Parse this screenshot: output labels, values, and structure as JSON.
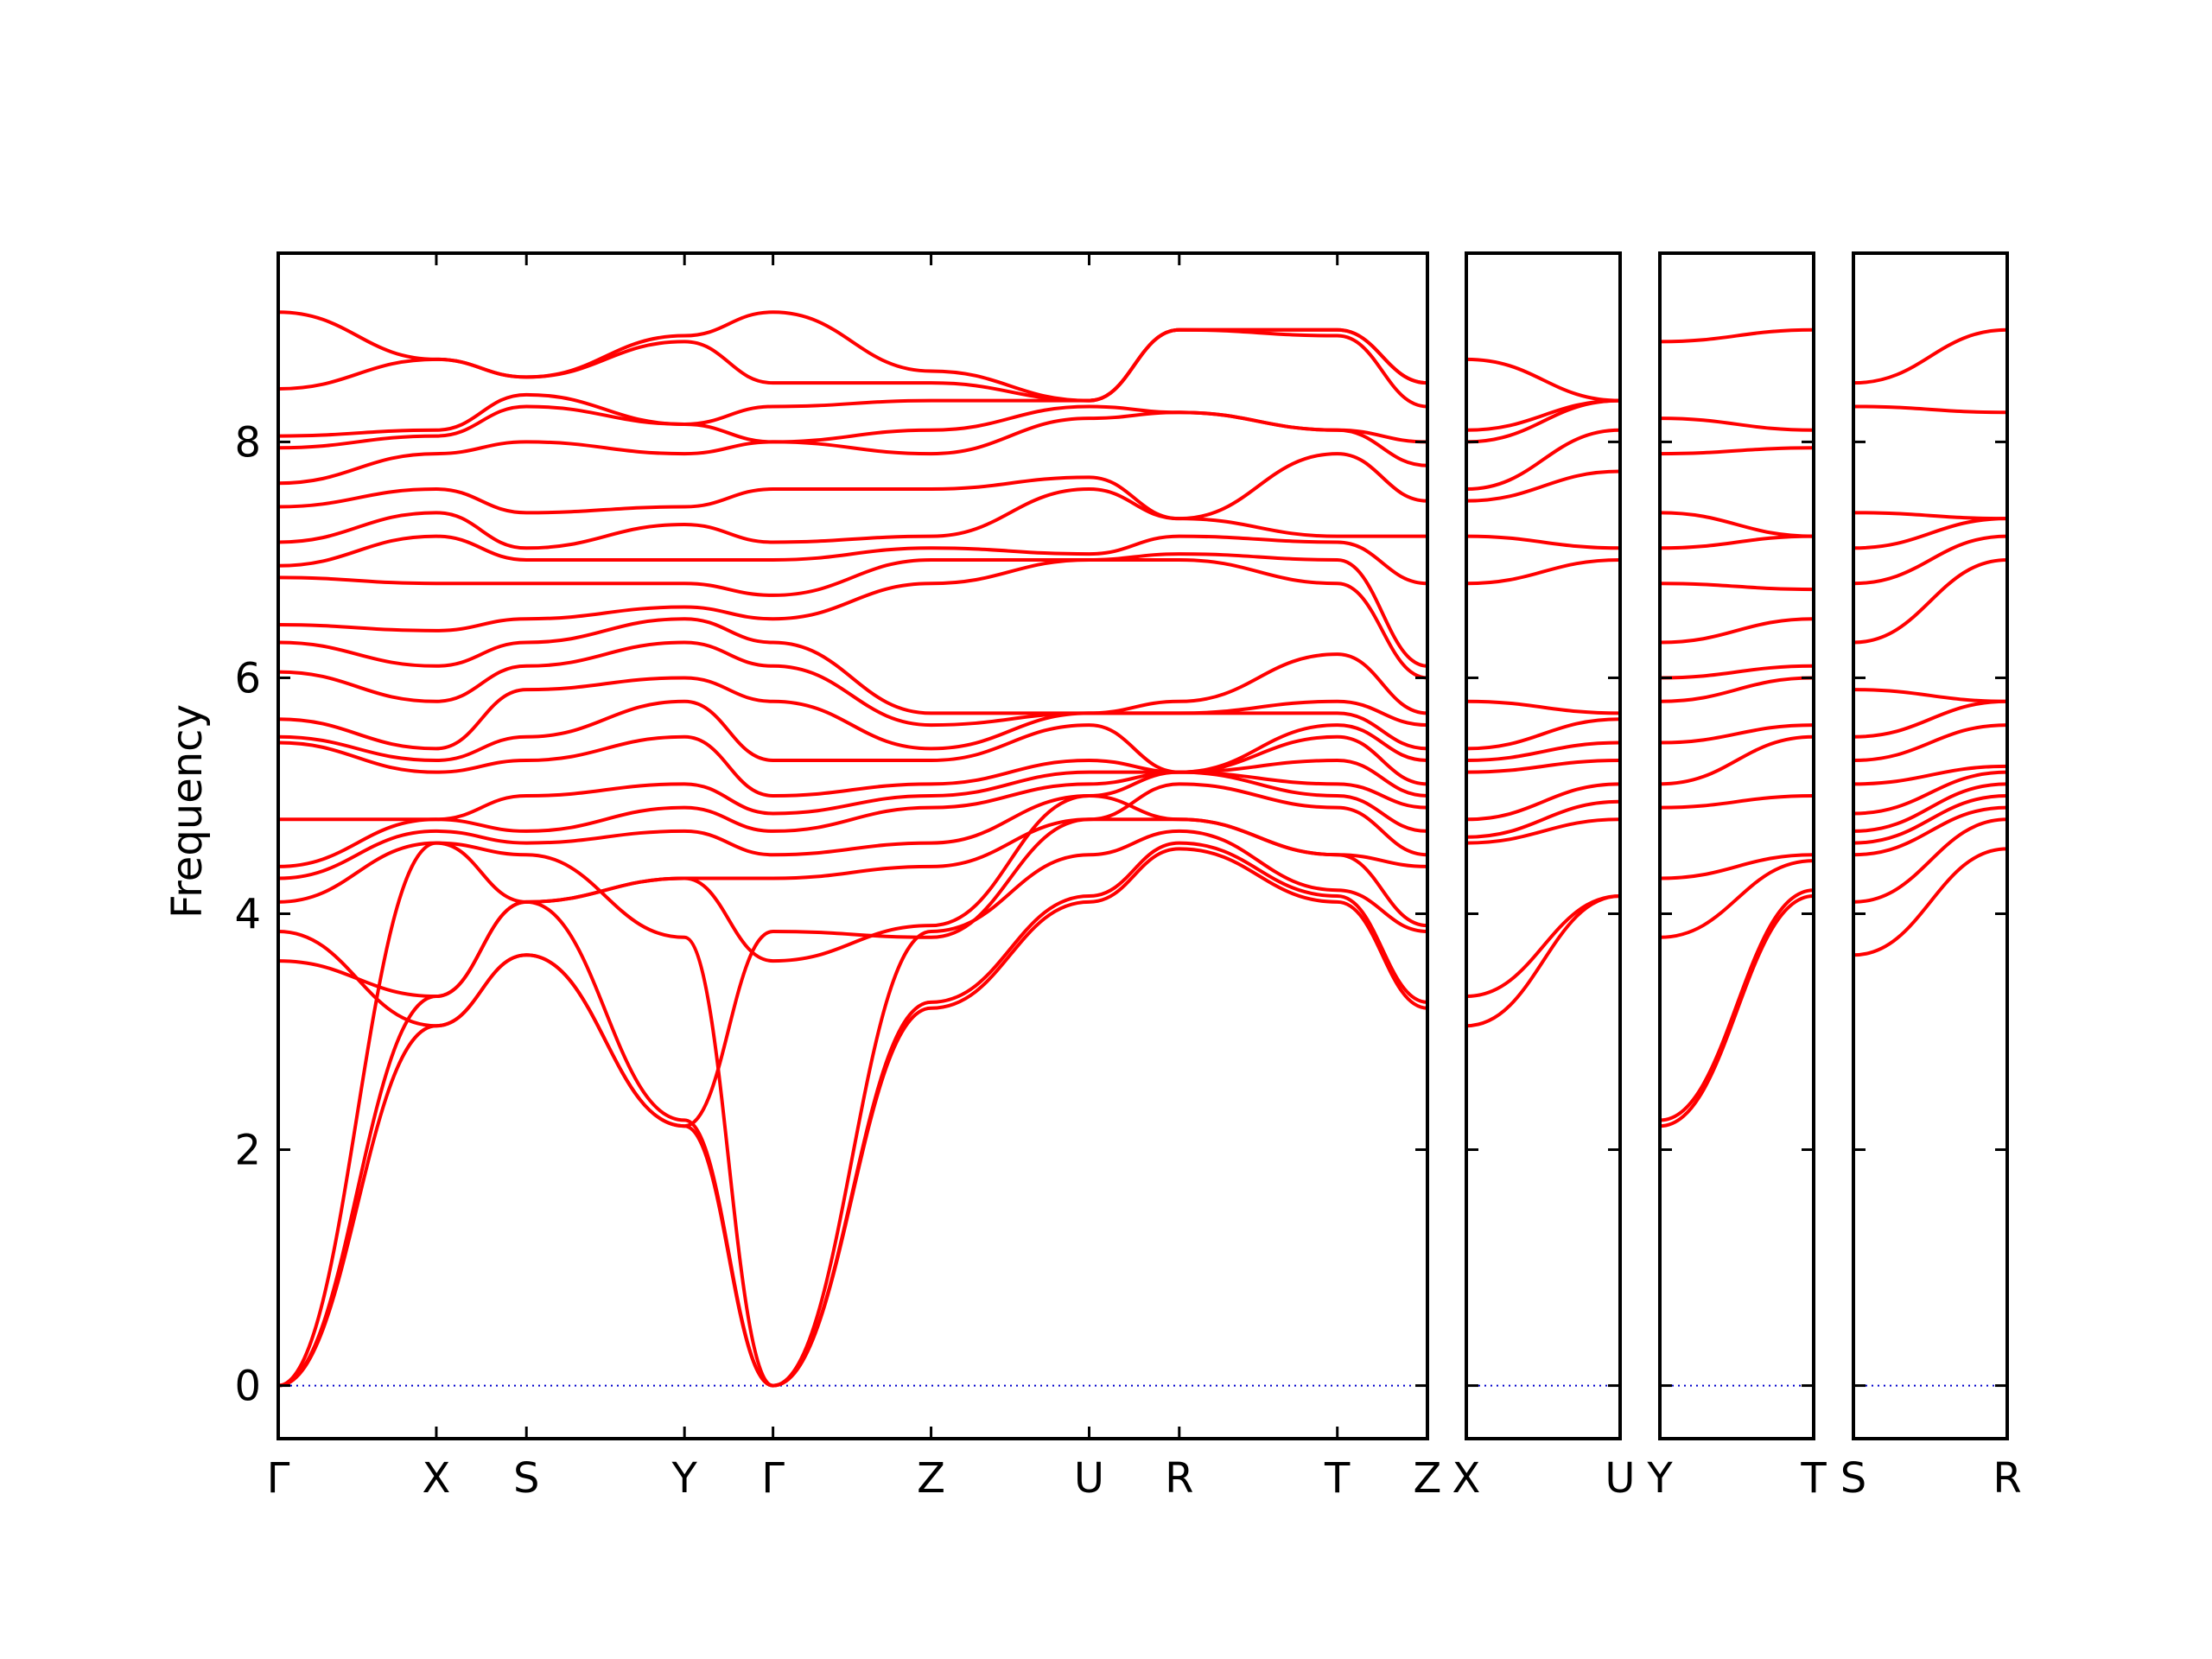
{
  "chart_data": {
    "type": "line",
    "ylabel": "Frequency",
    "ylim": [
      -0.45,
      9.6
    ],
    "yticks": [
      0,
      2,
      4,
      6,
      8
    ],
    "line_color": "#ff0000",
    "zero_line_color": "#0000cc",
    "panels": [
      {
        "id": "main",
        "labels": [
          "Γ",
          "X",
          "S",
          "Y",
          "Γ",
          "Z",
          "U",
          "R",
          "T",
          "Z"
        ],
        "x": [
          0,
          1,
          1.57,
          2.57,
          3.13,
          4.13,
          5.13,
          5.7,
          6.7,
          7.27
        ],
        "series": [
          {
            "y": [
              0,
              3.05,
              3.65,
              2.2,
              0,
              3.2,
              4.1,
              4.55,
              4.1,
              3.2
            ]
          },
          {
            "y": [
              0,
              3.3,
              4.1,
              2.25,
              0,
              3.25,
              4.15,
              4.6,
              4.15,
              3.25
            ]
          },
          {
            "y": [
              0,
              4.6,
              4.5,
              3.8,
              0,
              3.85,
              4.5,
              4.7,
              4.2,
              3.85
            ]
          },
          {
            "y": [
              3.6,
              3.3,
              4.1,
              4.3,
              3.6,
              3.9,
              5.0,
              4.8,
              4.5,
              3.9
            ]
          },
          {
            "y": [
              3.85,
              3.05,
              3.65,
              2.2,
              3.85,
              3.8,
              4.8,
              4.8,
              4.5,
              4.4
            ]
          },
          {
            "y": [
              4.1,
              4.6,
              4.1,
              4.3,
              4.3,
              4.4,
              4.8,
              5.1,
              4.9,
              4.5
            ]
          },
          {
            "y": [
              4.3,
              4.7,
              4.6,
              4.7,
              4.5,
              4.6,
              5.0,
              5.2,
              5.0,
              4.7
            ]
          },
          {
            "y": [
              4.4,
              4.8,
              4.7,
              4.9,
              4.7,
              4.9,
              5.1,
              5.2,
              5.1,
              4.9
            ]
          },
          {
            "y": [
              4.8,
              4.8,
              5.0,
              5.1,
              4.85,
              5.0,
              5.2,
              5.2,
              5.3,
              5.0
            ]
          },
          {
            "y": [
              5.45,
              5.2,
              5.3,
              5.5,
              5.0,
              5.1,
              5.3,
              5.2,
              5.5,
              5.1
            ]
          },
          {
            "y": [
              5.5,
              5.3,
              5.5,
              5.8,
              5.3,
              5.3,
              5.6,
              5.2,
              5.6,
              5.3
            ]
          },
          {
            "y": [
              5.65,
              5.4,
              5.9,
              6.0,
              5.8,
              5.4,
              5.7,
              5.7,
              5.7,
              5.4
            ]
          },
          {
            "y": [
              6.05,
              5.8,
              6.1,
              6.3,
              6.1,
              5.6,
              5.7,
              5.7,
              5.8,
              5.6
            ]
          },
          {
            "y": [
              6.3,
              6.1,
              6.3,
              6.5,
              6.3,
              5.7,
              5.7,
              5.8,
              6.2,
              5.7
            ]
          },
          {
            "y": [
              6.45,
              6.4,
              6.5,
              6.6,
              6.5,
              6.8,
              7.0,
              7.0,
              6.8,
              6.0
            ]
          },
          {
            "y": [
              6.85,
              6.8,
              6.8,
              6.8,
              6.7,
              7.0,
              7.0,
              7.05,
              7.0,
              6.1
            ]
          },
          {
            "y": [
              6.95,
              7.2,
              7.0,
              7.0,
              7.0,
              7.1,
              7.05,
              7.2,
              7.15,
              6.8
            ]
          },
          {
            "y": [
              7.15,
              7.4,
              7.1,
              7.3,
              7.15,
              7.2,
              7.6,
              7.35,
              7.2,
              7.2
            ]
          },
          {
            "y": [
              7.45,
              7.6,
              7.4,
              7.45,
              7.6,
              7.6,
              7.7,
              7.35,
              7.9,
              7.5
            ]
          },
          {
            "y": [
              7.65,
              7.9,
              8.0,
              7.9,
              8.0,
              7.9,
              8.2,
              8.25,
              8.1,
              7.8
            ]
          },
          {
            "y": [
              7.95,
              8.05,
              8.3,
              8.15,
              8.0,
              8.1,
              8.3,
              8.25,
              8.1,
              8.0
            ]
          },
          {
            "y": [
              8.05,
              8.1,
              8.4,
              8.15,
              8.3,
              8.35,
              8.35,
              8.95,
              8.9,
              8.3
            ]
          },
          {
            "y": [
              8.45,
              8.7,
              8.55,
              8.85,
              8.5,
              8.5,
              8.35,
              8.95,
              8.95,
              8.5
            ]
          },
          {
            "y": [
              9.1,
              8.7,
              8.55,
              8.9,
              9.1,
              8.6,
              8.35,
              8.95,
              8.95,
              8.5
            ]
          }
        ]
      },
      {
        "id": "xu",
        "labels": [
          "X",
          "U"
        ],
        "x": [
          0,
          1
        ],
        "series": [
          {
            "y": [
              3.05,
              4.15
            ]
          },
          {
            "y": [
              3.3,
              4.15
            ]
          },
          {
            "y": [
              4.6,
              4.8
            ]
          },
          {
            "y": [
              4.65,
              4.95
            ]
          },
          {
            "y": [
              4.8,
              5.1
            ]
          },
          {
            "y": [
              5.2,
              5.3
            ]
          },
          {
            "y": [
              5.3,
              5.45
            ]
          },
          {
            "y": [
              5.4,
              5.65
            ]
          },
          {
            "y": [
              5.8,
              5.7
            ]
          },
          {
            "y": [
              6.8,
              7.0
            ]
          },
          {
            "y": [
              7.2,
              7.1
            ]
          },
          {
            "y": [
              7.5,
              7.75
            ]
          },
          {
            "y": [
              7.6,
              8.1
            ]
          },
          {
            "y": [
              8.0,
              8.35
            ]
          },
          {
            "y": [
              8.1,
              8.35
            ]
          },
          {
            "y": [
              8.7,
              8.35
            ]
          }
        ]
      },
      {
        "id": "yt",
        "labels": [
          "Y",
          "T"
        ],
        "x": [
          0,
          1
        ],
        "series": [
          {
            "y": [
              2.2,
              4.15
            ]
          },
          {
            "y": [
              2.25,
              4.2
            ]
          },
          {
            "y": [
              3.8,
              4.45
            ]
          },
          {
            "y": [
              4.3,
              4.5
            ]
          },
          {
            "y": [
              4.9,
              5.0
            ]
          },
          {
            "y": [
              5.1,
              5.5
            ]
          },
          {
            "y": [
              5.45,
              5.6
            ]
          },
          {
            "y": [
              5.8,
              6.0
            ]
          },
          {
            "y": [
              6.0,
              6.1
            ]
          },
          {
            "y": [
              6.3,
              6.5
            ]
          },
          {
            "y": [
              6.8,
              6.75
            ]
          },
          {
            "y": [
              7.1,
              7.2
            ]
          },
          {
            "y": [
              7.4,
              7.2
            ]
          },
          {
            "y": [
              7.9,
              7.95
            ]
          },
          {
            "y": [
              8.2,
              8.1
            ]
          },
          {
            "y": [
              8.85,
              8.95
            ]
          }
        ]
      },
      {
        "id": "sr",
        "labels": [
          "S",
          "R"
        ],
        "x": [
          0,
          1
        ],
        "series": [
          {
            "y": [
              3.65,
              4.55
            ]
          },
          {
            "y": [
              4.1,
              4.8
            ]
          },
          {
            "y": [
              4.5,
              4.9
            ]
          },
          {
            "y": [
              4.6,
              5.0
            ]
          },
          {
            "y": [
              4.7,
              5.1
            ]
          },
          {
            "y": [
              4.85,
              5.2
            ]
          },
          {
            "y": [
              5.1,
              5.25
            ]
          },
          {
            "y": [
              5.3,
              5.6
            ]
          },
          {
            "y": [
              5.5,
              5.8
            ]
          },
          {
            "y": [
              5.9,
              5.8
            ]
          },
          {
            "y": [
              6.3,
              7.0
            ]
          },
          {
            "y": [
              6.8,
              7.2
            ]
          },
          {
            "y": [
              7.1,
              7.35
            ]
          },
          {
            "y": [
              7.4,
              7.35
            ]
          },
          {
            "y": [
              8.3,
              8.25
            ]
          },
          {
            "y": [
              8.5,
              8.95
            ]
          }
        ]
      }
    ]
  }
}
